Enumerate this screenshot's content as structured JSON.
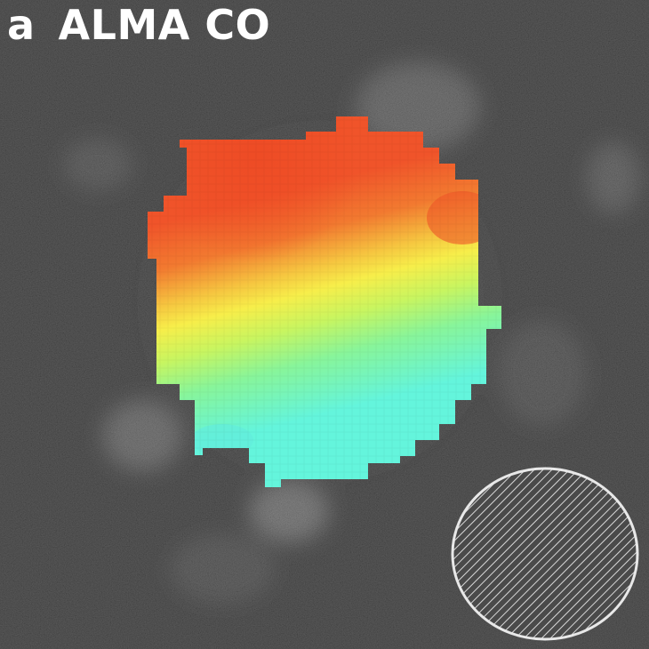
{
  "panel": {
    "letter": "a",
    "title": "ALMA CO"
  },
  "colors": {
    "background": "#121212",
    "velocity_red": "#f05a28",
    "velocity_orange": "#f5a03a",
    "velocity_yellow": "#f7ea48",
    "velocity_green": "#80f59a",
    "velocity_cyan": "#64f5dc",
    "beam_fill": "#555555",
    "beam_hatch": "#e0e0e0"
  },
  "icons": {
    "beam": "hatched-beam-ellipse-icon"
  }
}
